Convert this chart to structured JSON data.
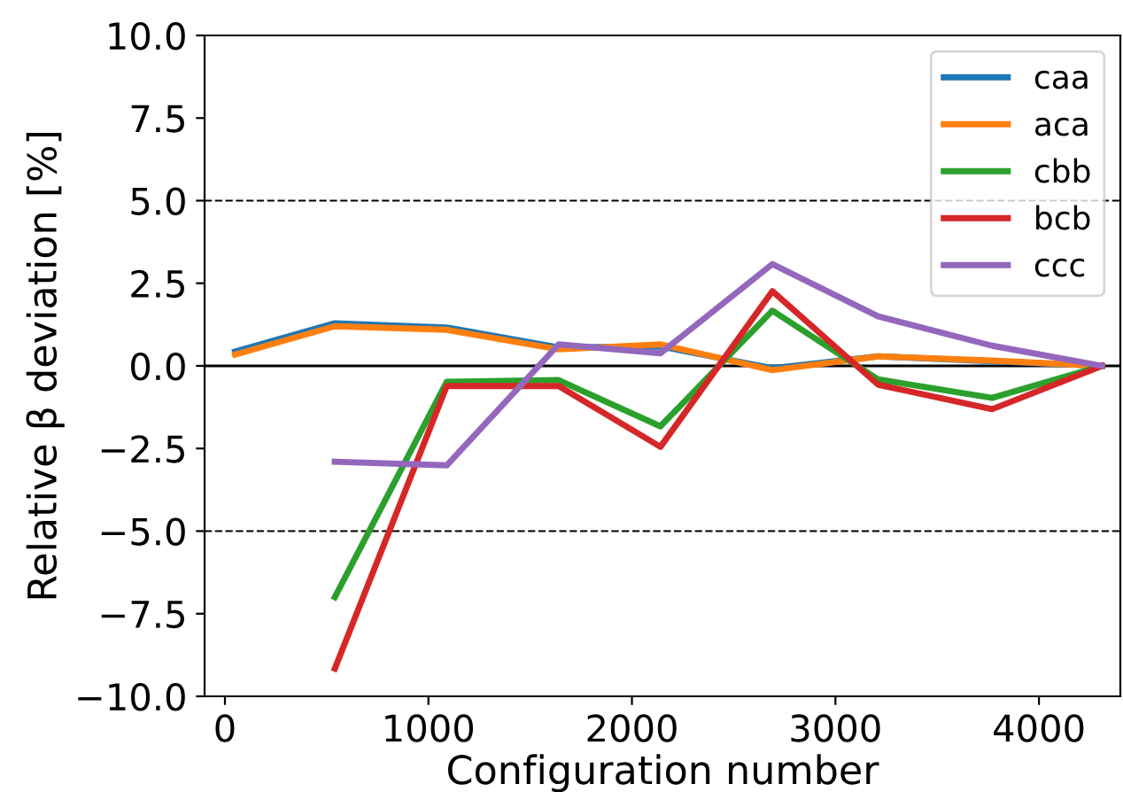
{
  "chart_data": {
    "type": "line",
    "xlabel": "Configuration number",
    "ylabel": "Relative β deviation [%]",
    "x": [
      50,
      540,
      1090,
      1640,
      2140,
      2690,
      3210,
      3770,
      4310
    ],
    "series": [
      {
        "name": "caa",
        "color": "#1f77b4",
        "values": [
          0.43,
          1.29,
          1.16,
          0.56,
          0.59,
          -0.07,
          0.29,
          0.14,
          0
        ]
      },
      {
        "name": "aca",
        "color": "#ff7f0e",
        "values": [
          0.34,
          1.2,
          1.09,
          0.5,
          0.65,
          -0.13,
          0.29,
          0.16,
          0
        ]
      },
      {
        "name": "cbb",
        "color": "#2ca02c",
        "values": [
          null,
          -7.0,
          -0.48,
          -0.43,
          -1.83,
          1.67,
          -0.41,
          -0.97,
          0
        ]
      },
      {
        "name": "bcb",
        "color": "#d62728",
        "values": [
          null,
          -9.16,
          -0.61,
          -0.61,
          -2.45,
          2.26,
          -0.57,
          -1.31,
          0
        ]
      },
      {
        "name": "ccc",
        "color": "#9467bd",
        "values": [
          null,
          -2.9,
          -3.01,
          0.65,
          0.38,
          3.08,
          1.5,
          0.61,
          0
        ]
      }
    ],
    "xlim": [
      -100,
      4400
    ],
    "xticks": [
      0,
      1000,
      2000,
      3000,
      4000
    ],
    "ylim": [
      -10,
      10
    ],
    "yticks": [
      {
        "value": -10,
        "label": "−10.0"
      },
      {
        "value": -7.5,
        "label": "−7.5"
      },
      {
        "value": -5,
        "label": "−5.0"
      },
      {
        "value": -2.5,
        "label": "−2.5"
      },
      {
        "value": 0,
        "label": "0.0"
      },
      {
        "value": 2.5,
        "label": "2.5"
      },
      {
        "value": 5,
        "label": "5.0"
      },
      {
        "value": 7.5,
        "label": "7.5"
      },
      {
        "value": 10,
        "label": "10.0"
      }
    ],
    "ref_lines": [
      {
        "axis": "y",
        "value": 5,
        "color": "#000000",
        "line_style": "dashed"
      },
      {
        "axis": "y",
        "value": -5,
        "color": "#000000",
        "line_style": "dashed"
      },
      {
        "axis": "y",
        "value": 0,
        "color": "#000000",
        "line_style": "solid"
      }
    ],
    "grid": false,
    "legend": "top right",
    "line_style": "solid",
    "marker": "none"
  }
}
